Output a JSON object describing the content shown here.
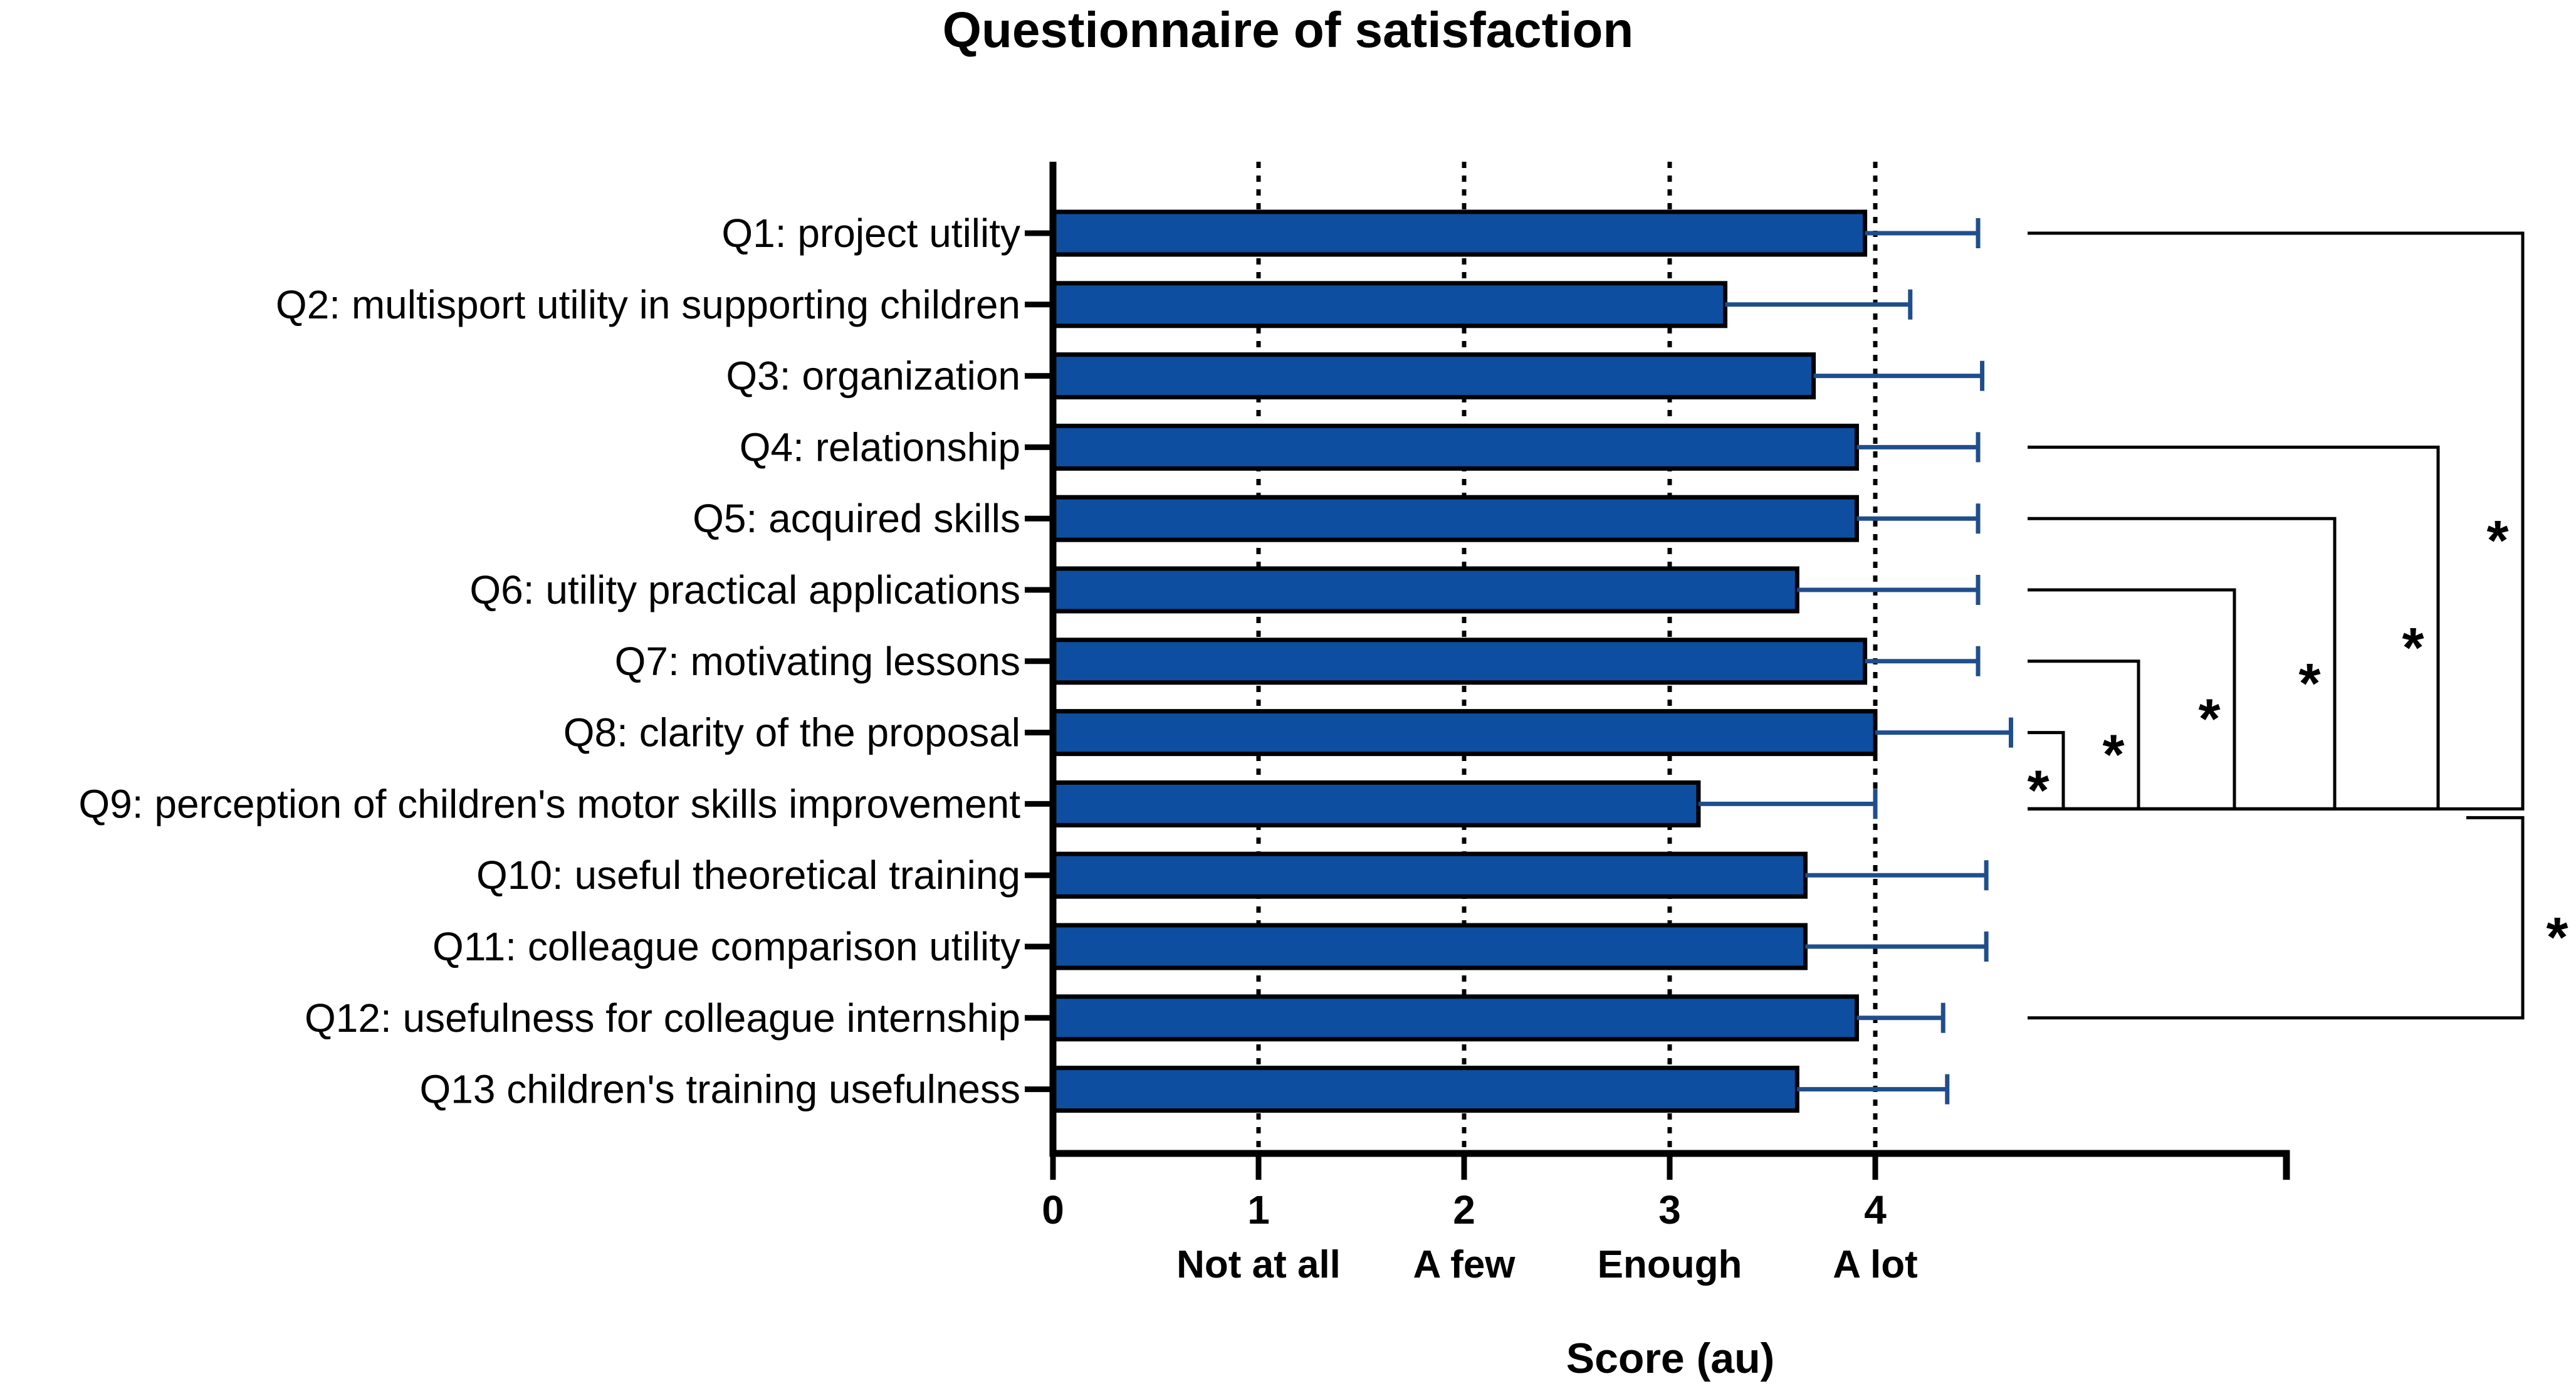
{
  "chart_data": {
    "type": "bar",
    "orientation": "horizontal",
    "title": "Questionnaire of satisfaction",
    "xlabel": "Score (au)",
    "ylabel": "",
    "xlim": [
      0,
      6
    ],
    "x_ticks": [
      0,
      1,
      2,
      3,
      4
    ],
    "x_tick_labels": [
      "0",
      "1",
      "2",
      "3",
      "4"
    ],
    "level_labels": [
      {
        "x": 1,
        "label": "Not at all"
      },
      {
        "x": 2,
        "label": "A few"
      },
      {
        "x": 3,
        "label": "Enough"
      },
      {
        "x": 4,
        "label": "A lot"
      }
    ],
    "reference_lines": [
      1,
      2,
      3,
      4
    ],
    "categories": [
      "Q1: project utility",
      "Q2: multisport utility in supporting children",
      "Q3: organization",
      "Q4: relationship",
      "Q5: acquired skills",
      "Q6: utility practical applications",
      "Q7: motivating lessons",
      "Q8: clarity of the proposal",
      "Q9: perception of children's motor skills improvement",
      "Q10: useful theoretical training",
      "Q11: colleague comparison utility",
      "Q12: usefulness for colleague internship",
      "Q13 children's training usefulness"
    ],
    "values": [
      3.95,
      3.27,
      3.7,
      3.91,
      3.91,
      3.62,
      3.95,
      4.0,
      3.14,
      3.66,
      3.66,
      3.91,
      3.62
    ],
    "error_upper": [
      4.5,
      4.17,
      4.52,
      4.5,
      4.5,
      4.5,
      4.5,
      4.66,
      4.0,
      4.54,
      4.54,
      4.33,
      4.35
    ],
    "bar_color": "#0d4ea0",
    "error_color": "#1f4e8c",
    "significance": [
      {
        "from": 1,
        "to": 9,
        "label": "*"
      },
      {
        "from": 4,
        "to": 9,
        "label": "*"
      },
      {
        "from": 5,
        "to": 9,
        "label": "*"
      },
      {
        "from": 6,
        "to": 9,
        "label": "*"
      },
      {
        "from": 7,
        "to": 9,
        "label": "*"
      },
      {
        "from": 8,
        "to": 9,
        "label": "*"
      },
      {
        "from": 9,
        "to": 12,
        "label": "*"
      }
    ]
  }
}
